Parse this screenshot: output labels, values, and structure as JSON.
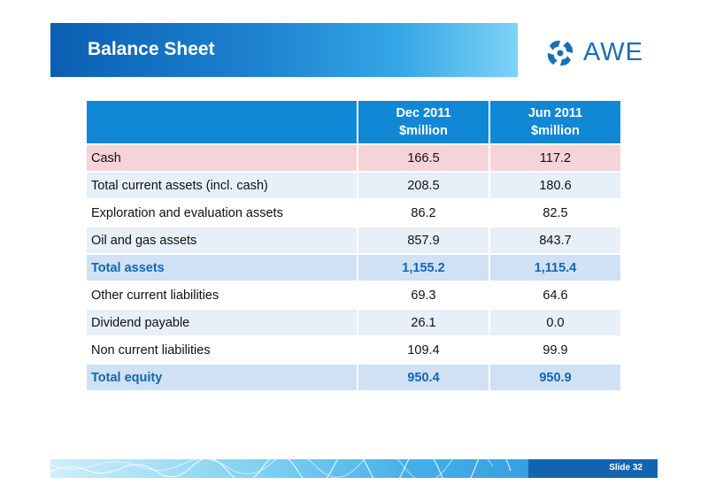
{
  "header": {
    "title": "Balance Sheet"
  },
  "logo": {
    "text": "AWE",
    "color": "#1a6fb4"
  },
  "table": {
    "columns": [
      {
        "line1": "Dec 2011",
        "line2": "$million"
      },
      {
        "line1": "Jun 2011",
        "line2": "$million"
      }
    ],
    "rows": [
      {
        "label": "Cash",
        "dec": "166.5",
        "jun": "117.2"
      },
      {
        "label": "Total current assets (incl. cash)",
        "dec": "208.5",
        "jun": "180.6"
      },
      {
        "label": "Exploration and evaluation assets",
        "dec": "86.2",
        "jun": "82.5"
      },
      {
        "label": "Oil and gas assets",
        "dec": "857.9",
        "jun": "843.7"
      },
      {
        "label": "Total assets",
        "dec": "1,155.2",
        "jun": "1,115.4"
      },
      {
        "label": "Other current liabilities",
        "dec": "69.3",
        "jun": "64.6"
      },
      {
        "label": "Dividend payable",
        "dec": "26.1",
        "jun": "0.0"
      },
      {
        "label": "Non current liabilities",
        "dec": "109.4",
        "jun": "99.9"
      },
      {
        "label": "Total equity",
        "dec": "950.4",
        "jun": "950.9"
      }
    ]
  },
  "footer": {
    "slide_label": "Slide 32"
  },
  "colors": {
    "header_blue": "#1088d6",
    "highlight_pink": "#f6d3d8",
    "total_row": "#cfe1f3",
    "total_text": "#1167b5"
  }
}
